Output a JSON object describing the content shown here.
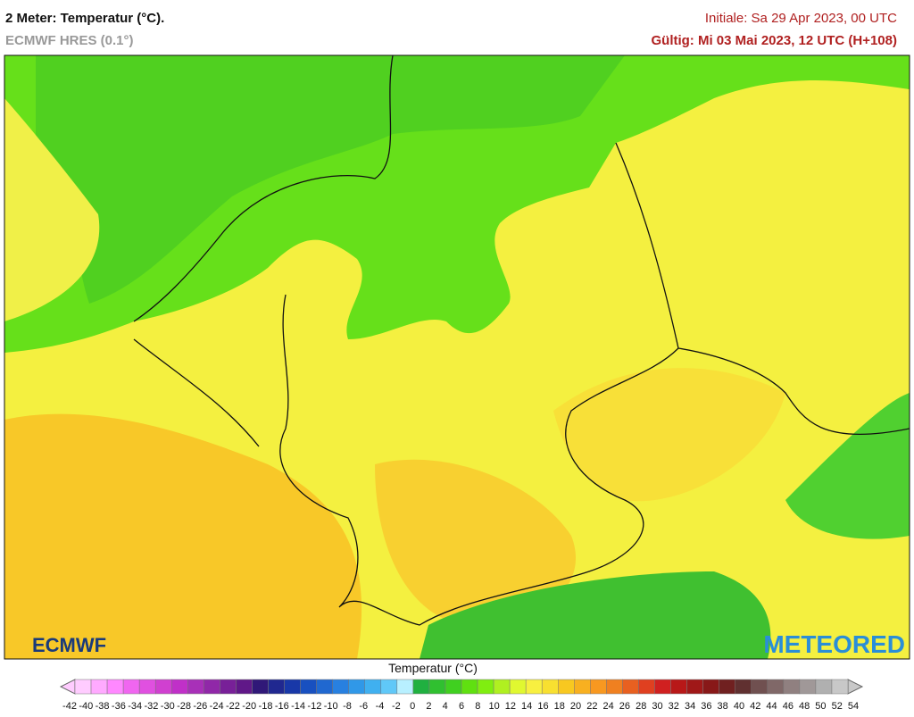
{
  "header": {
    "title": "2 Meter: Temperatur (°C).",
    "model": "ECMWF HRES (0.1°)",
    "init": "Initiale: Sa 29 Apr 2023, 00 UTC",
    "valid": "Gültig: Mi 03 Mai 2023, 12 UTC (H+108)"
  },
  "logos": {
    "left": "ECMWF",
    "right": "METEORED"
  },
  "legend": {
    "title": "Temperatur (°C)",
    "ticks": [
      -42,
      -40,
      -38,
      -36,
      -34,
      -32,
      -30,
      -28,
      -26,
      -24,
      -22,
      -20,
      -18,
      -16,
      -14,
      -12,
      -10,
      -8,
      -6,
      -4,
      -2,
      0,
      2,
      4,
      6,
      8,
      10,
      12,
      14,
      16,
      18,
      20,
      22,
      24,
      26,
      28,
      30,
      32,
      34,
      36,
      38,
      40,
      42,
      44,
      46,
      48,
      50,
      52,
      54
    ],
    "colors": [
      "#ffccff",
      "#ffaaff",
      "#ff88ff",
      "#f066f0",
      "#e050e0",
      "#d040d0",
      "#c030c8",
      "#a830b8",
      "#9028a8",
      "#782098",
      "#601888",
      "#301878",
      "#202890",
      "#1838a8",
      "#1850c0",
      "#2068d0",
      "#2880e0",
      "#3098e8",
      "#40b0f0",
      "#60c8f8",
      "#b8f0ff",
      "#20b040",
      "#30c030",
      "#40d020",
      "#60e010",
      "#80ee10",
      "#b0f020",
      "#e0f830",
      "#f8f040",
      "#f8e030",
      "#f8c820",
      "#f8b020",
      "#f89820",
      "#f08020",
      "#e86020",
      "#e04020",
      "#d02020",
      "#b81818",
      "#a01818",
      "#881818",
      "#702020",
      "#603030",
      "#705050",
      "#806868",
      "#908080",
      "#a09898",
      "#b0b0b0",
      "#c8c8c8"
    ]
  }
}
